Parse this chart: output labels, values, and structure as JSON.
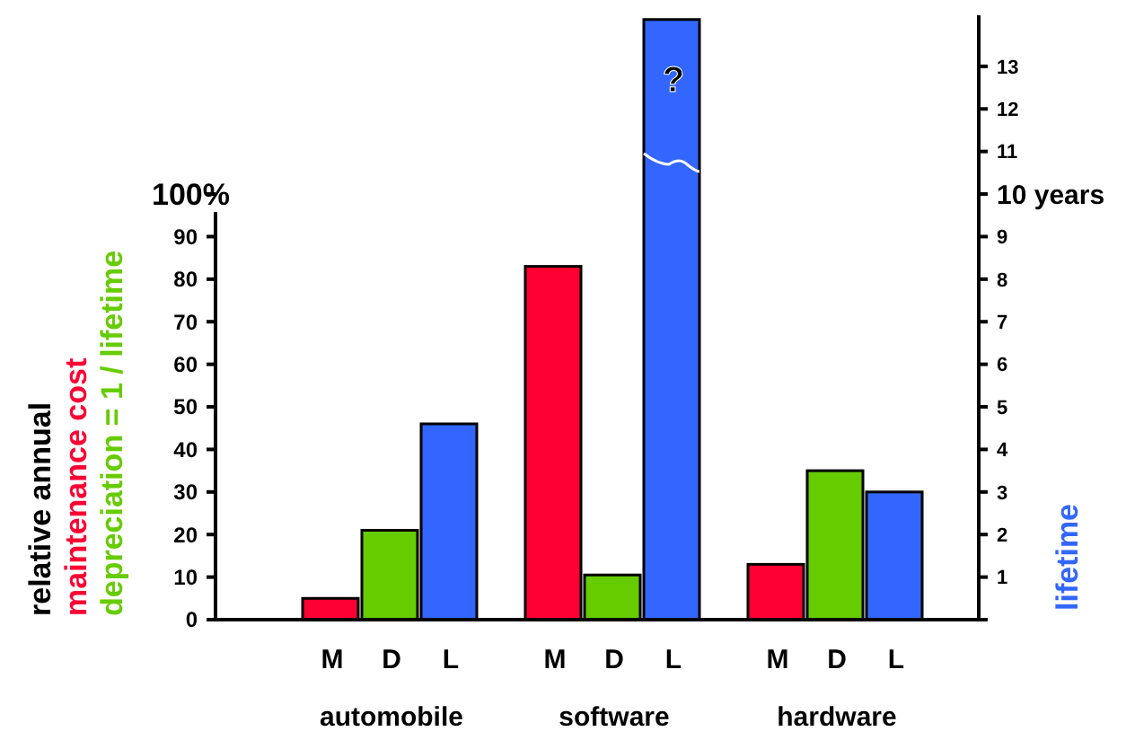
{
  "chart_data": {
    "type": "bar",
    "categories": [
      "M",
      "D",
      "L",
      "M",
      "D",
      "L",
      "M",
      "D",
      "L"
    ],
    "series": [
      {
        "color": "#ff0033",
        "values": [
          5,
          null,
          null,
          83,
          null,
          null,
          13,
          null,
          null
        ]
      },
      {
        "color": "#66cc00",
        "values": [
          null,
          21,
          null,
          null,
          10.5,
          null,
          null,
          35,
          null
        ]
      },
      {
        "color": "#3366ff",
        "axis": "y2",
        "values": [
          null,
          null,
          4.6,
          null,
          null,
          14.1,
          null,
          null,
          3.0
        ]
      }
    ],
    "ylabel": "relative annual\nmaintenance cost\ndepreciation = 1 / lifetime",
    "y2label": "lifetime",
    "ylim": [
      0,
      142
    ],
    "yticks": [
      0,
      10,
      20,
      30,
      40,
      50,
      60,
      70,
      80,
      90,
      {
        "value": 100,
        "label": "100%"
      }
    ],
    "y2lim": [
      0,
      14.2
    ],
    "y2ticks": [
      {
        "value": 0,
        "label": null
      },
      1,
      2,
      3,
      4,
      5,
      6,
      7,
      8,
      9,
      {
        "value": 10,
        "label": "10 years"
      },
      11,
      12,
      13
    ],
    "annotations": [
      "automobile",
      "software",
      "hardware",
      "?"
    ],
    "grid": false
  }
}
